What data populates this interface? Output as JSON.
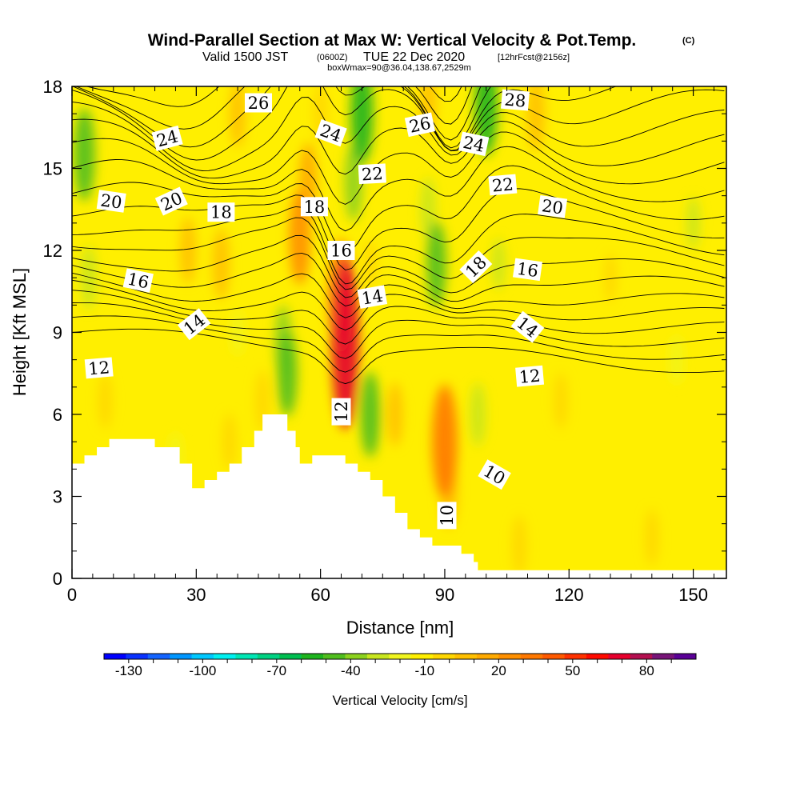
{
  "chart_data": {
    "type": "heatmap",
    "title": "Wind-Parallel Section at Max W: Vertical Velocity & Pot.Temp.",
    "copyright_mark": "(C)",
    "subtitle": {
      "valid_prefix": "Valid 1500 JST",
      "utc": "(0600Z)",
      "date": "TUE 22 Dec 2020",
      "forecast": "[12hrFcst@2156z]"
    },
    "box_info": "boxWmax=90@36.04,138.67,2529m",
    "xlabel": "Distance [nm]",
    "ylabel": "Height [Kft MSL]",
    "xlim": [
      0,
      158
    ],
    "ylim": [
      0,
      18
    ],
    "x_ticks": [
      0,
      30,
      60,
      90,
      120,
      150
    ],
    "y_ticks": [
      0,
      3,
      6,
      9,
      12,
      15,
      18
    ],
    "colorbar": {
      "title": "Vertical Velocity [cm/s]",
      "range": [
        -140,
        100
      ],
      "step": 10,
      "labeled_ticks": [
        -130,
        -100,
        -70,
        -40,
        -10,
        20,
        50,
        80
      ],
      "colors": [
        "#0000ff",
        "#0a32ff",
        "#1464ff",
        "#0096ff",
        "#00c8ff",
        "#00f0f0",
        "#00e6b4",
        "#00d282",
        "#00be50",
        "#1eb41e",
        "#50be1e",
        "#8cd21e",
        "#c8e61e",
        "#f0f51e",
        "#ffef00",
        "#ffd700",
        "#ffc000",
        "#ffaa00",
        "#ff9000",
        "#ff7800",
        "#ff5a00",
        "#ff3200",
        "#ff0a00",
        "#e6002d",
        "#b40f50",
        "#781478",
        "#5a0096"
      ]
    },
    "velocity_features": [
      {
        "x": 66,
        "y": 8.6,
        "value": 95
      },
      {
        "x": 65,
        "y": 10.3,
        "value": 55
      },
      {
        "x": 55,
        "y": 12.5,
        "value": 42
      },
      {
        "x": 57,
        "y": 14.5,
        "value": 30
      },
      {
        "x": 90,
        "y": 5.0,
        "value": 55
      },
      {
        "x": 91,
        "y": 3.2,
        "value": 28
      },
      {
        "x": 36,
        "y": 11.5,
        "value": 25
      },
      {
        "x": 28,
        "y": 12.0,
        "value": 22
      },
      {
        "x": 40,
        "y": 17.0,
        "value": 22
      },
      {
        "x": 60,
        "y": 17.0,
        "value": 18
      },
      {
        "x": 86,
        "y": 17.5,
        "value": 25
      },
      {
        "x": 112,
        "y": 17.0,
        "value": 28
      },
      {
        "x": 46,
        "y": 6.5,
        "value": 18
      },
      {
        "x": 38,
        "y": 5.0,
        "value": 15
      },
      {
        "x": 8,
        "y": 6.5,
        "value": 15
      },
      {
        "x": 78,
        "y": 6.0,
        "value": 20
      },
      {
        "x": 118,
        "y": 6.5,
        "value": 15
      },
      {
        "x": 108,
        "y": 1.2,
        "value": 18
      },
      {
        "x": 140,
        "y": 1.5,
        "value": 15
      },
      {
        "x": 72,
        "y": 11.5,
        "value": 10
      },
      {
        "x": 130,
        "y": 11.0,
        "value": 10
      },
      {
        "x": 68,
        "y": 14.5,
        "value": -30
      },
      {
        "x": 70,
        "y": 17.0,
        "value": -45
      },
      {
        "x": 100,
        "y": 17.3,
        "value": -45
      },
      {
        "x": 88,
        "y": 11.5,
        "value": -35
      },
      {
        "x": 86,
        "y": 13.5,
        "value": -20
      },
      {
        "x": 52,
        "y": 7.5,
        "value": -35
      },
      {
        "x": 51,
        "y": 8.7,
        "value": -25
      },
      {
        "x": 72,
        "y": 6.0,
        "value": -35
      },
      {
        "x": 3,
        "y": 15.5,
        "value": -40
      },
      {
        "x": 4,
        "y": 11.0,
        "value": -20
      },
      {
        "x": 98,
        "y": 6.0,
        "value": -20
      },
      {
        "x": 103,
        "y": 11.5,
        "value": -12
      },
      {
        "x": 25,
        "y": 4.5,
        "value": -8
      },
      {
        "x": 146,
        "y": 8.0,
        "value": -10
      },
      {
        "x": 150,
        "y": 13.0,
        "value": -12
      },
      {
        "x": 40,
        "y": 9.0,
        "value": -8
      }
    ],
    "terrain": [
      {
        "x": 0,
        "y": 4.2
      },
      {
        "x": 3,
        "y": 4.5
      },
      {
        "x": 6,
        "y": 4.8
      },
      {
        "x": 9,
        "y": 5.1
      },
      {
        "x": 20,
        "y": 4.8
      },
      {
        "x": 26,
        "y": 4.2
      },
      {
        "x": 29,
        "y": 3.3
      },
      {
        "x": 32,
        "y": 3.6
      },
      {
        "x": 35,
        "y": 3.9
      },
      {
        "x": 38,
        "y": 4.2
      },
      {
        "x": 41,
        "y": 4.8
      },
      {
        "x": 44,
        "y": 5.4
      },
      {
        "x": 46,
        "y": 6.0
      },
      {
        "x": 52,
        "y": 5.4
      },
      {
        "x": 54,
        "y": 4.8
      },
      {
        "x": 55,
        "y": 4.2
      },
      {
        "x": 58,
        "y": 4.5
      },
      {
        "x": 66,
        "y": 4.2
      },
      {
        "x": 69,
        "y": 3.9
      },
      {
        "x": 72,
        "y": 3.6
      },
      {
        "x": 75,
        "y": 3.0
      },
      {
        "x": 78,
        "y": 2.4
      },
      {
        "x": 81,
        "y": 1.8
      },
      {
        "x": 84,
        "y": 1.5
      },
      {
        "x": 87,
        "y": 1.2
      },
      {
        "x": 94,
        "y": 0.9
      },
      {
        "x": 97,
        "y": 0.6
      },
      {
        "x": 98,
        "y": 0.3
      },
      {
        "x": 158,
        "y": 0.3
      }
    ],
    "theta_contours": [
      {
        "base": 9.0
      },
      {
        "base": 9.4
      },
      {
        "base": 9.8
      },
      {
        "base": 10.2
      },
      {
        "base": 10.6
      },
      {
        "base": 11.0
      },
      {
        "base": 11.5
      },
      {
        "base": 12.0
      },
      {
        "base": 12.6
      },
      {
        "base": 13.1
      },
      {
        "base": 13.7
      },
      {
        "base": 14.3
      },
      {
        "base": 14.9
      },
      {
        "base": 15.5
      },
      {
        "base": 16.1
      },
      {
        "base": 16.7
      },
      {
        "base": 17.3
      },
      {
        "base": 17.8
      },
      {
        "base": 18.3
      },
      {
        "base": 18.8
      },
      {
        "base": 19.3
      },
      {
        "base": 19.8
      },
      {
        "base": 20.3
      },
      {
        "base": 20.8
      },
      {
        "base": 21.3
      },
      {
        "base": 21.8
      },
      {
        "base": 22.3
      }
    ],
    "contour_labels": [
      {
        "text": "26",
        "x": 45,
        "y": 17.4,
        "angle": 0
      },
      {
        "text": "28",
        "x": 107,
        "y": 17.5,
        "angle": 5
      },
      {
        "text": "24",
        "x": 23,
        "y": 16.1,
        "angle": -15
      },
      {
        "text": "24",
        "x": 62.5,
        "y": 16.3,
        "angle": 20
      },
      {
        "text": "26",
        "x": 84,
        "y": 16.6,
        "angle": -12
      },
      {
        "text": "24",
        "x": 97,
        "y": 15.9,
        "angle": 12
      },
      {
        "text": "22",
        "x": 72.5,
        "y": 14.8,
        "angle": -3
      },
      {
        "text": "22",
        "x": 104,
        "y": 14.4,
        "angle": -5
      },
      {
        "text": "20",
        "x": 9.5,
        "y": 13.8,
        "angle": 8
      },
      {
        "text": "20",
        "x": 24,
        "y": 13.8,
        "angle": -25
      },
      {
        "text": "18",
        "x": 36,
        "y": 13.4,
        "angle": 0
      },
      {
        "text": "18",
        "x": 58.5,
        "y": 13.6,
        "angle": 0
      },
      {
        "text": "20",
        "x": 116,
        "y": 13.6,
        "angle": 8
      },
      {
        "text": "16",
        "x": 65,
        "y": 12.0,
        "angle": 0
      },
      {
        "text": "18",
        "x": 97.5,
        "y": 11.4,
        "angle": -45
      },
      {
        "text": "16",
        "x": 110,
        "y": 11.3,
        "angle": 8
      },
      {
        "text": "16",
        "x": 16,
        "y": 10.9,
        "angle": 12
      },
      {
        "text": "14",
        "x": 72.5,
        "y": 10.3,
        "angle": -10
      },
      {
        "text": "14",
        "x": 29.5,
        "y": 9.3,
        "angle": -38
      },
      {
        "text": "14",
        "x": 110,
        "y": 9.2,
        "angle": 38
      },
      {
        "text": "12",
        "x": 6.5,
        "y": 7.7,
        "angle": -5
      },
      {
        "text": "12",
        "x": 110.5,
        "y": 7.4,
        "angle": -5
      },
      {
        "text": "12",
        "x": 65,
        "y": 6.1,
        "angle": -90
      },
      {
        "text": "10",
        "x": 102,
        "y": 3.8,
        "angle": 30
      },
      {
        "text": "10",
        "x": 90.5,
        "y": 2.3,
        "angle": -90
      }
    ]
  }
}
